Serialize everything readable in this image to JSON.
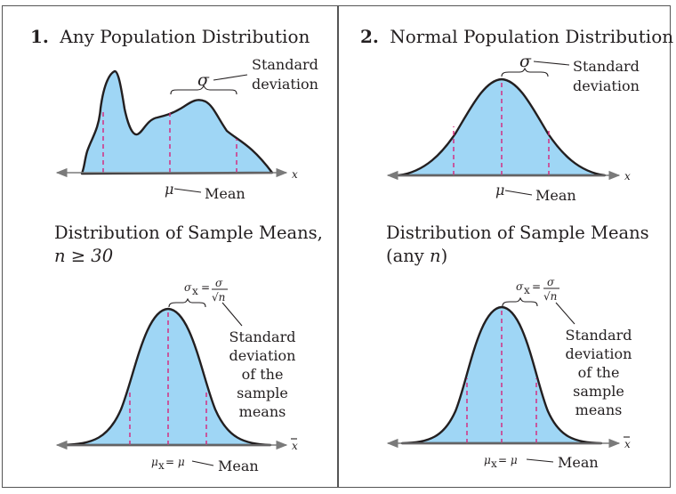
{
  "left": {
    "number": "1.",
    "title": "Any Population Distribution",
    "sigma": "σ",
    "std_line1": "Standard",
    "std_line2": "deviation",
    "mu": "μ",
    "mean": "Mean",
    "x": "x",
    "sample_title_line1": "Distribution of Sample Means,",
    "n_condition": "n ≥ 30",
    "sigma_xbar_lhs": "σ",
    "sigma_xbar_num": "σ",
    "sigma_xbar_den": "√n",
    "sample_std": [
      "Standard",
      "deviation",
      "of the",
      "sample",
      "means"
    ],
    "mu_xbar": "μ",
    "mu_xbar_eq": "= μ",
    "mean2": "Mean",
    "xbar": "x"
  },
  "right": {
    "number": "2.",
    "title": "Normal Population Distribution",
    "sigma": "σ",
    "std_line1": "Standard",
    "std_line2": "deviation",
    "mu": "μ",
    "mean": "Mean",
    "x": "x",
    "sample_title_line1": "Distribution of Sample Means",
    "n_condition": "(any n)",
    "sigma_xbar_lhs": "σ",
    "sigma_xbar_num": "σ",
    "sigma_xbar_den": "√n",
    "sample_std": [
      "Standard",
      "deviation",
      "of the",
      "sample",
      "means"
    ],
    "mu_xbar": "μ",
    "mu_xbar_eq": "= μ",
    "mean2": "Mean",
    "xbar": "x"
  }
}
